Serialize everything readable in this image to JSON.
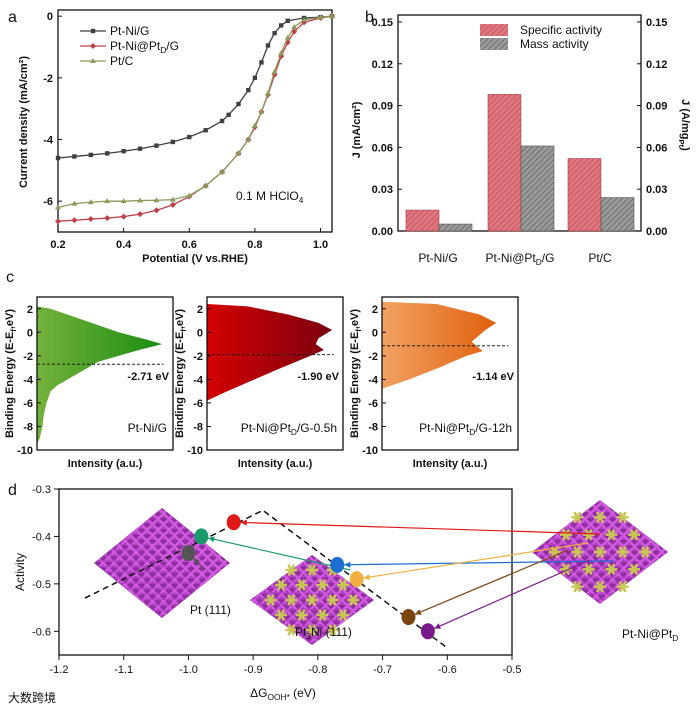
{
  "watermark": "大数跨境",
  "chart_data": [
    {
      "panel": "a",
      "type": "line",
      "xlabel": "Potential (V vs.RHE)",
      "ylabel": "Current density (mA/cm²)",
      "xlim": [
        0.2,
        1.035
      ],
      "ylim": [
        -7,
        0.2
      ],
      "xticks": [
        "0.2",
        "0.4",
        "0.6",
        "0.8",
        "1.0"
      ],
      "yticks": [
        "0",
        "-2",
        "-4",
        "-6"
      ],
      "annotation": {
        "main": "0.1 M HClO",
        "sub": "4"
      },
      "legend_position": "top-left",
      "series": [
        {
          "name_parts": [
            "Pt-Ni/G",
            "",
            ""
          ],
          "color": "#404040",
          "marker": "square",
          "x": [
            0.2,
            0.25,
            0.3,
            0.35,
            0.4,
            0.45,
            0.5,
            0.55,
            0.6,
            0.65,
            0.7,
            0.72,
            0.75,
            0.78,
            0.8,
            0.82,
            0.84,
            0.86,
            0.88,
            0.9,
            0.95,
            1.0,
            1.035
          ],
          "y": [
            -4.6,
            -4.55,
            -4.5,
            -4.45,
            -4.38,
            -4.3,
            -4.2,
            -4.08,
            -3.92,
            -3.7,
            -3.4,
            -3.2,
            -2.85,
            -2.4,
            -2.0,
            -1.5,
            -0.95,
            -0.55,
            -0.3,
            -0.15,
            -0.06,
            -0.03,
            0
          ]
        },
        {
          "name_parts": [
            "Pt-Ni@Pt",
            "D",
            "/G"
          ],
          "color": "#c0404a",
          "marker": "diamond",
          "x": [
            0.2,
            0.25,
            0.3,
            0.35,
            0.4,
            0.45,
            0.5,
            0.55,
            0.6,
            0.65,
            0.7,
            0.75,
            0.78,
            0.8,
            0.82,
            0.84,
            0.86,
            0.88,
            0.9,
            0.92,
            0.95,
            1.0,
            1.035
          ],
          "y": [
            -6.65,
            -6.62,
            -6.58,
            -6.55,
            -6.5,
            -6.42,
            -6.3,
            -6.12,
            -5.85,
            -5.5,
            -5.05,
            -4.45,
            -4.0,
            -3.6,
            -3.1,
            -2.55,
            -1.9,
            -1.3,
            -0.85,
            -0.5,
            -0.2,
            -0.06,
            0
          ]
        },
        {
          "name_parts": [
            "Pt/C",
            "",
            ""
          ],
          "color": "#8c9a5c",
          "marker": "triangle",
          "x": [
            0.2,
            0.25,
            0.3,
            0.35,
            0.4,
            0.45,
            0.5,
            0.55,
            0.6,
            0.65,
            0.7,
            0.75,
            0.78,
            0.8,
            0.82,
            0.84,
            0.86,
            0.88,
            0.9,
            0.92,
            0.95,
            1.0,
            1.035
          ],
          "y": [
            -6.2,
            -6.08,
            -6.03,
            -6.0,
            -6.0,
            -5.98,
            -5.97,
            -5.95,
            -5.82,
            -5.5,
            -5.05,
            -4.45,
            -4.0,
            -3.55,
            -3.1,
            -2.5,
            -1.8,
            -1.2,
            -0.7,
            -0.35,
            -0.12,
            -0.04,
            0
          ]
        }
      ]
    },
    {
      "panel": "b",
      "type": "bar",
      "categories": [
        [
          "Pt-Ni/G",
          "",
          ""
        ],
        [
          "Pt-Ni@Pt",
          "D",
          "/G"
        ],
        [
          "Pt/C",
          "",
          ""
        ]
      ],
      "ylabel_left": "J (mA/cm²)",
      "ylabel_right": {
        "main": "J (A/mg",
        "sub": "Pt",
        "end": ")"
      },
      "ylim": [
        0,
        0.155
      ],
      "yticks": [
        "0.00",
        "0.03",
        "0.06",
        "0.09",
        "0.12",
        "0.15"
      ],
      "legend_position": "top-center",
      "series": [
        {
          "name": "Specific activity",
          "color": "#d9646e",
          "values": [
            0.015,
            0.098,
            0.052
          ]
        },
        {
          "name": "Mass activity",
          "color": "#8a8a8a",
          "values": [
            0.005,
            0.061,
            0.024
          ]
        }
      ]
    },
    {
      "panel": "c",
      "type": "area",
      "ylabel": {
        "main": "Binding Energy (E-E",
        "sub": "f",
        "end": ",eV)"
      },
      "xlabel": "Intensity (a.u.)",
      "ylim": [
        -10,
        3
      ],
      "yticks": [
        "2",
        "0",
        "-2",
        "-4",
        "-6",
        "-8",
        "-10"
      ],
      "subplots": [
        {
          "name_parts": [
            "Pt-Ni/G",
            "",
            ""
          ],
          "d_band_center": -2.71,
          "center_label": "-2.71 eV",
          "colors": [
            "#74b23a",
            "#1a8c12"
          ],
          "profile": [
            [
              2.2,
              0
            ],
            [
              2,
              0.1
            ],
            [
              1,
              0.35
            ],
            [
              0,
              0.6
            ],
            [
              -0.6,
              0.8
            ],
            [
              -1,
              0.92
            ],
            [
              -1.5,
              0.75
            ],
            [
              -2.5,
              0.45
            ],
            [
              -3.5,
              0.3
            ],
            [
              -4.5,
              0.15
            ],
            [
              -5,
              0.1
            ],
            [
              -6,
              0.07
            ],
            [
              -7,
              0.05
            ],
            [
              -8,
              0.04
            ],
            [
              -9,
              0.02
            ],
            [
              -9.5,
              0
            ]
          ]
        },
        {
          "name_parts": [
            "Pt-Ni@Pt",
            "D",
            "/G-0.5h"
          ],
          "d_band_center": -1.9,
          "center_label": "-1.90 eV",
          "colors": [
            "#d40000",
            "#7a0010"
          ],
          "profile": [
            [
              2.4,
              0
            ],
            [
              2.2,
              0.3
            ],
            [
              1.5,
              0.6
            ],
            [
              0.8,
              0.82
            ],
            [
              0.2,
              0.92
            ],
            [
              -0.5,
              0.82
            ],
            [
              -1,
              0.8
            ],
            [
              -1.5,
              0.86
            ],
            [
              -2,
              0.76
            ],
            [
              -3,
              0.55
            ],
            [
              -4,
              0.35
            ],
            [
              -5,
              0.15
            ],
            [
              -5.8,
              0
            ]
          ]
        },
        {
          "name_parts": [
            "Pt-Ni@Pt",
            "D",
            "/G-12h"
          ],
          "d_band_center": -1.14,
          "center_label": "-1.14 eV",
          "colors": [
            "#f2a262",
            "#e0600e"
          ],
          "profile": [
            [
              2.6,
              0
            ],
            [
              2.4,
              0.4
            ],
            [
              1.5,
              0.72
            ],
            [
              0.8,
              0.84
            ],
            [
              0.2,
              0.76
            ],
            [
              -0.8,
              0.66
            ],
            [
              -1.6,
              0.74
            ],
            [
              -2,
              0.62
            ],
            [
              -3,
              0.42
            ],
            [
              -4,
              0.2
            ],
            [
              -4.8,
              0
            ]
          ]
        }
      ]
    },
    {
      "panel": "d",
      "type": "scatter",
      "xlabel": {
        "main": "ΔG",
        "sub": "OOH*",
        "end": " (eV)"
      },
      "ylabel": "Activity",
      "xlim": [
        -1.2,
        -0.5
      ],
      "ylim": [
        -0.65,
        -0.3
      ],
      "xticks": [
        "-1.2",
        "-1.1",
        "-1.0",
        "-0.9",
        "-0.8",
        "-0.7",
        "-0.6",
        "-0.5"
      ],
      "yticks": [
        "-0.3",
        "-0.4",
        "-0.5",
        "-0.6"
      ],
      "volcano_line": {
        "x": [
          -1.16,
          -0.885,
          -0.6
        ],
        "y": [
          -0.53,
          -0.345,
          -0.635
        ]
      },
      "points": [
        {
          "x": -1.0,
          "y": -0.435,
          "color": "#555555"
        },
        {
          "x": -0.98,
          "y": -0.4,
          "color": "#1a9a6a"
        },
        {
          "x": -0.93,
          "y": -0.37,
          "color": "#e01818"
        },
        {
          "x": -0.77,
          "y": -0.46,
          "color": "#1c6fd0"
        },
        {
          "x": -0.74,
          "y": -0.49,
          "color": "#f0b040"
        },
        {
          "x": -0.66,
          "y": -0.57,
          "color": "#7a4410"
        },
        {
          "x": -0.63,
          "y": -0.6,
          "color": "#7a1a8a"
        }
      ],
      "structure_labels": [
        {
          "parts": [
            "Pt (111)",
            "",
            ""
          ]
        },
        {
          "parts": [
            "Pt",
            "3",
            "Ni (111)"
          ]
        },
        {
          "parts": [
            "Pt-Ni@Pt",
            "D",
            ""
          ]
        }
      ]
    }
  ],
  "panel_letters": [
    "a",
    "b",
    "c",
    "d"
  ]
}
